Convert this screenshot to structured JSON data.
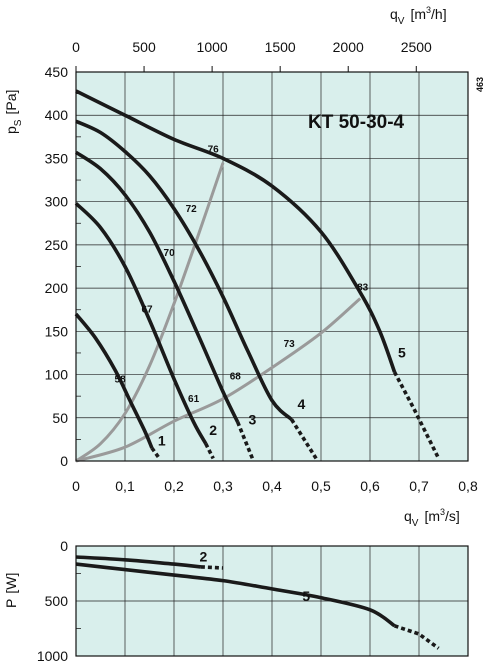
{
  "chart_data": [
    {
      "type": "line",
      "title": "KT 50-30-4",
      "code": "463",
      "xlabel": "q",
      "xlabel_sub": "V",
      "xlabel_unit": "[m",
      "xlabel_unit_sup": "3",
      "xlabel_unit_end": "/s]",
      "x2label": "q",
      "x2label_sub": "V",
      "x2label_unit": "[m",
      "x2label_unit_sup": "3",
      "x2label_unit_end": "/h]",
      "ylabel": "p",
      "ylabel_sub": "S",
      "ylabel_unit": "[Pa]",
      "xlim": [
        0,
        0.8
      ],
      "ylim": [
        0,
        450
      ],
      "x_ticks": [
        "0",
        "0,1",
        "0,2",
        "0,3",
        "0,4",
        "0,5",
        "0,6",
        "0,7",
        "0,8"
      ],
      "x_tick_values": [
        0,
        0.1,
        0.2,
        0.3,
        0.4,
        0.5,
        0.6,
        0.7,
        0.8
      ],
      "x2_ticks": [
        "0",
        "500",
        "1000",
        "1500",
        "2000",
        "2500"
      ],
      "x2_tick_values": [
        0,
        500,
        1000,
        1500,
        2000,
        2500
      ],
      "y_ticks": [
        "0",
        "50",
        "100",
        "150",
        "200",
        "250",
        "300",
        "350",
        "400",
        "450"
      ],
      "y_tick_values": [
        0,
        50,
        100,
        150,
        200,
        250,
        300,
        350,
        400,
        450
      ],
      "grid": true,
      "colors": {
        "background": "#d9efec",
        "curve": "#1a1a1a",
        "efficiency": "#9a9a9a",
        "grid": "#222222"
      },
      "series": [
        {
          "name": "1",
          "solid": [
            [
              0,
              170
            ],
            [
              0.04,
              142
            ],
            [
              0.08,
              105
            ],
            [
              0.11,
              70
            ],
            [
              0.14,
              35
            ],
            [
              0.155,
              15
            ]
          ],
          "dashed": [
            [
              0.155,
              15
            ],
            [
              0.17,
              3
            ]
          ],
          "label_at": [
            0.175,
            18
          ]
        },
        {
          "name": "2",
          "solid": [
            [
              0,
              298
            ],
            [
              0.05,
              270
            ],
            [
              0.1,
              225
            ],
            [
              0.15,
              163
            ],
            [
              0.2,
              95
            ],
            [
              0.24,
              45
            ],
            [
              0.265,
              20
            ]
          ],
          "dashed": [
            [
              0.265,
              20
            ],
            [
              0.28,
              3
            ]
          ],
          "label_at": [
            0.28,
            30
          ]
        },
        {
          "name": "3",
          "solid": [
            [
              0,
              357
            ],
            [
              0.05,
              338
            ],
            [
              0.1,
              308
            ],
            [
              0.15,
              265
            ],
            [
              0.2,
              208
            ],
            [
              0.25,
              145
            ],
            [
              0.3,
              80
            ],
            [
              0.33,
              45
            ]
          ],
          "dashed": [
            [
              0.33,
              45
            ],
            [
              0.36,
              3
            ]
          ],
          "label_at": [
            0.36,
            42
          ]
        },
        {
          "name": "4",
          "solid": [
            [
              0,
              393
            ],
            [
              0.05,
              380
            ],
            [
              0.1,
              358
            ],
            [
              0.15,
              330
            ],
            [
              0.2,
              292
            ],
            [
              0.25,
              245
            ],
            [
              0.3,
              190
            ],
            [
              0.35,
              128
            ],
            [
              0.4,
              70
            ],
            [
              0.44,
              48
            ]
          ],
          "dashed": [
            [
              0.44,
              48
            ],
            [
              0.49,
              3
            ]
          ],
          "label_at": [
            0.46,
            60
          ]
        },
        {
          "name": "5",
          "solid": [
            [
              0,
              428
            ],
            [
              0.1,
              400
            ],
            [
              0.2,
              372
            ],
            [
              0.3,
              350
            ],
            [
              0.4,
              318
            ],
            [
              0.5,
              265
            ],
            [
              0.58,
              195
            ],
            [
              0.62,
              150
            ],
            [
              0.65,
              103
            ]
          ],
          "dashed": [
            [
              0.65,
              103
            ],
            [
              0.69,
              60
            ],
            [
              0.74,
              3
            ]
          ],
          "label_at": [
            0.665,
            120
          ]
        }
      ],
      "efficiency_curves": [
        {
          "points": [
            [
              0,
              0
            ],
            [
              0.05,
              20
            ],
            [
              0.1,
              55
            ],
            [
              0.15,
              110
            ],
            [
              0.2,
              182
            ],
            [
              0.25,
              262
            ],
            [
              0.3,
              345
            ]
          ]
        },
        {
          "points": [
            [
              0,
              0
            ],
            [
              0.1,
              16
            ],
            [
              0.2,
              46
            ],
            [
              0.3,
              72
            ],
            [
              0.4,
              108
            ],
            [
              0.5,
              148
            ],
            [
              0.58,
              188
            ]
          ]
        }
      ],
      "efficiency_labels": [
        {
          "text": "76",
          "at": [
            0.28,
            357
          ]
        },
        {
          "text": "72",
          "at": [
            0.235,
            288
          ]
        },
        {
          "text": "70",
          "at": [
            0.19,
            237
          ]
        },
        {
          "text": "67",
          "at": [
            0.145,
            172
          ]
        },
        {
          "text": "58",
          "at": [
            0.09,
            91
          ]
        },
        {
          "text": "61",
          "at": [
            0.24,
            68
          ]
        },
        {
          "text": "68",
          "at": [
            0.325,
            94
          ]
        },
        {
          "text": "73",
          "at": [
            0.435,
            132
          ]
        },
        {
          "text": "83",
          "at": [
            0.585,
            197
          ]
        }
      ]
    },
    {
      "type": "line",
      "ylabel": "P",
      "ylabel_unit": "[W]",
      "xlim": [
        0,
        0.8
      ],
      "ylim": [
        0,
        1000
      ],
      "y_inverted": true,
      "y_ticks": [
        "0",
        "500",
        "1000"
      ],
      "y_tick_values": [
        0,
        500,
        1000
      ],
      "grid": true,
      "series": [
        {
          "name": "2",
          "solid": [
            [
              0,
              100
            ],
            [
              0.1,
              125
            ],
            [
              0.2,
              165
            ],
            [
              0.255,
              190
            ]
          ],
          "dashed": [
            [
              0.255,
              190
            ],
            [
              0.3,
              200
            ]
          ],
          "label_at": [
            0.26,
            140
          ]
        },
        {
          "name": "5",
          "solid": [
            [
              0,
              165
            ],
            [
              0.1,
              215
            ],
            [
              0.2,
              265
            ],
            [
              0.3,
              315
            ],
            [
              0.4,
              390
            ],
            [
              0.5,
              470
            ],
            [
              0.6,
              580
            ],
            [
              0.65,
              725
            ]
          ],
          "dashed": [
            [
              0.65,
              725
            ],
            [
              0.7,
              800
            ],
            [
              0.74,
              930
            ]
          ],
          "label_at": [
            0.47,
            500
          ]
        }
      ]
    }
  ]
}
